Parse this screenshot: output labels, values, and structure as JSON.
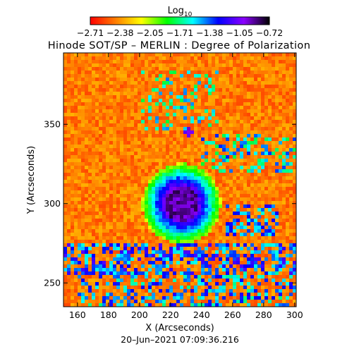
{
  "chart_data": {
    "type": "heatmap",
    "title": "Hinode SOT/SP – MERLIN : Degree of Polarization",
    "xlabel": "X (Arcseconds)",
    "ylabel": "Y (Arcseconds)",
    "timestamp": "20–Jun–2021  07:09:36.216",
    "xlim": [
      151,
      301
    ],
    "ylim": [
      235,
      395
    ],
    "x_ticks": [
      "160",
      "180",
      "200",
      "220",
      "240",
      "260",
      "280",
      "300"
    ],
    "x_tick_values": [
      160,
      180,
      200,
      220,
      240,
      260,
      280,
      300
    ],
    "y_ticks": [
      "250",
      "300",
      "350"
    ],
    "y_tick_values": [
      250,
      300,
      350
    ],
    "colorbar": {
      "label_base": "Log",
      "label_sub": "10",
      "min": -2.71,
      "max": -0.72,
      "tick_labels": [
        "−2.71",
        "−2.38",
        "−2.05",
        "−1.71",
        "−1.38",
        "−1.05",
        "−0.72"
      ],
      "colormap": [
        "#ff0000",
        "#ff7f00",
        "#ffff00",
        "#00ff00",
        "#00ffff",
        "#0000ff",
        "#8b00ff",
        "#000000"
      ]
    },
    "features": [
      {
        "kind": "sunspot-umbra",
        "x": 227,
        "y": 300,
        "rx": 11,
        "ry": 11
      },
      {
        "kind": "pore",
        "x": 232,
        "y": 345,
        "rx": 3,
        "ry": 2.5
      }
    ]
  }
}
